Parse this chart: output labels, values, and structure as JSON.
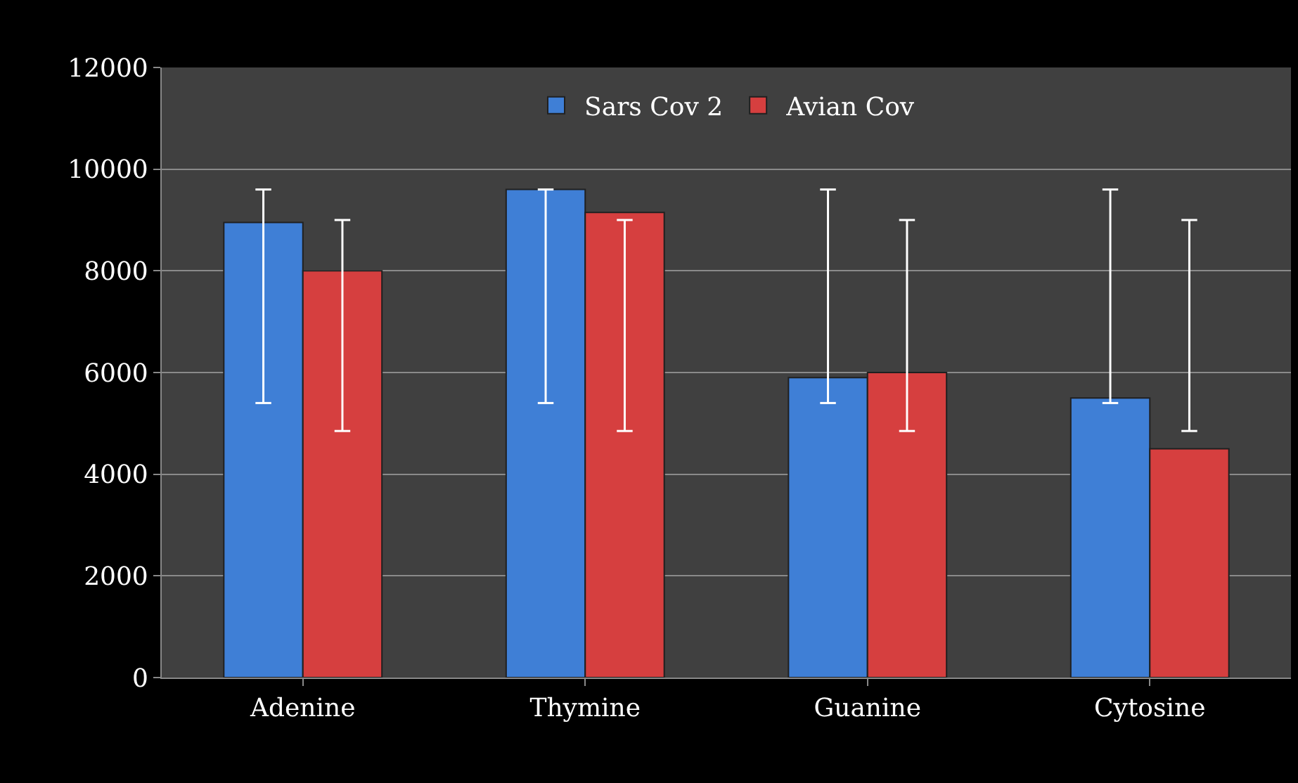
{
  "chart_data": {
    "type": "bar",
    "categories": [
      "Adenine",
      "Thymine",
      "Guanine",
      "Cytosine"
    ],
    "series": [
      {
        "name": "Sars Cov 2",
        "color": "#3f7fd6",
        "values": [
          8950,
          9600,
          5900,
          5500
        ],
        "errors": [
          [
            5400,
            9600
          ],
          [
            5400,
            9600
          ],
          [
            5400,
            9600
          ],
          [
            5400,
            9600
          ]
        ]
      },
      {
        "name": "Avian Cov",
        "color": "#d63f3f",
        "values": [
          8000,
          9150,
          6000,
          4500
        ],
        "errors": [
          [
            4850,
            9000
          ],
          [
            4850,
            9000
          ],
          [
            4850,
            9000
          ],
          [
            4850,
            9000
          ]
        ]
      }
    ],
    "ylim": [
      0,
      12000
    ],
    "yticks": [
      0,
      2000,
      4000,
      6000,
      8000,
      10000,
      12000
    ],
    "grid": "y",
    "legend": "top"
  }
}
